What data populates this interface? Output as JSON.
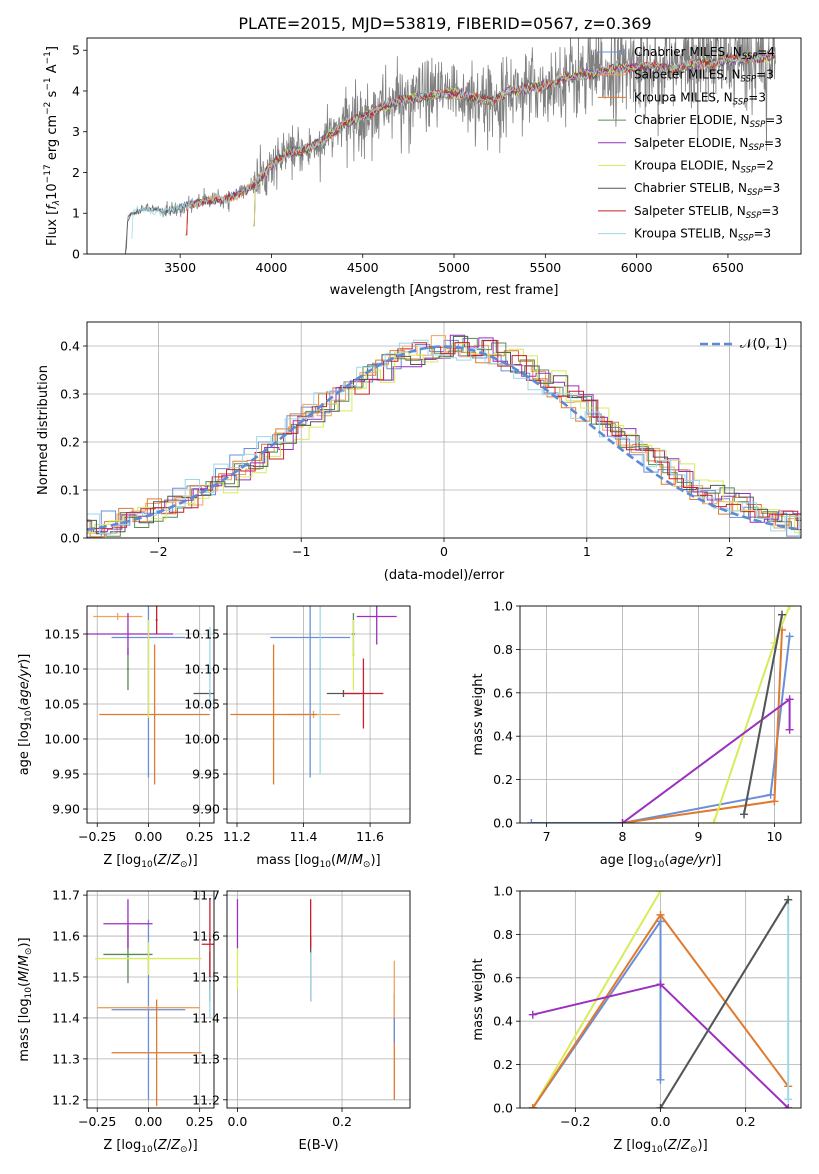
{
  "figure_title": "PLATE=2015, MJD=53819, FIBERID=0567, z=0.369",
  "colors": {
    "Chabrier MILES": "#6a8fd8",
    "Salpeter MILES": "#f0a35e",
    "Kroupa MILES": "#e07a2e",
    "Chabrier ELODIE": "#5a8a5a",
    "Salpeter ELODIE": "#9b30c0",
    "Kroupa ELODIE": "#d8ec5a",
    "Chabrier STELIB": "#555555",
    "Salpeter STELIB": "#c8202a",
    "Kroupa STELIB": "#9ed8e8",
    "data": "#808080",
    "gaussian": "#5b8bd6"
  },
  "chart_data": [
    {
      "id": "spectrum",
      "type": "line",
      "xlabel": "wavelength [Angstrom, rest frame]",
      "ylabel": "Flux [f_λ 10^-17 erg cm^-2 s^-1 A^-1]",
      "xlim": [
        2990,
        6900
      ],
      "ylim": [
        0,
        5.3
      ],
      "xticks": [
        3500,
        4000,
        4500,
        5000,
        5500,
        6000,
        6500
      ],
      "yticks": [
        0,
        1,
        2,
        3,
        4,
        5
      ],
      "legend_position": "top-right",
      "legend": [
        {
          "label": "Chabrier MILES, N",
          "sub": "SSP",
          "suffix": "=4",
          "model": "Chabrier MILES"
        },
        {
          "label": "Salpeter MILES, N",
          "sub": "SSP",
          "suffix": "=3",
          "model": "Salpeter MILES"
        },
        {
          "label": "Kroupa MILES, N",
          "sub": "SSP",
          "suffix": "=3",
          "model": "Kroupa MILES"
        },
        {
          "label": "Chabrier ELODIE, N",
          "sub": "SSP",
          "suffix": "=3",
          "model": "Chabrier ELODIE"
        },
        {
          "label": "Salpeter ELODIE, N",
          "sub": "SSP",
          "suffix": "=3",
          "model": "Salpeter ELODIE"
        },
        {
          "label": "Kroupa ELODIE, N",
          "sub": "SSP",
          "suffix": "=2",
          "model": "Kroupa ELODIE"
        },
        {
          "label": "Chabrier STELIB, N",
          "sub": "SSP",
          "suffix": "=3",
          "model": "Chabrier STELIB"
        },
        {
          "label": "Salpeter STELIB, N",
          "sub": "SSP",
          "suffix": "=3",
          "model": "Salpeter STELIB"
        },
        {
          "label": "Kroupa STELIB, N",
          "sub": "SSP",
          "suffix": "=3",
          "model": "Kroupa STELIB"
        }
      ],
      "continuum": [
        [
          3200,
          0.0
        ],
        [
          3215,
          0.95
        ],
        [
          3300,
          1.1
        ],
        [
          3450,
          1.05
        ],
        [
          3550,
          1.2
        ],
        [
          3650,
          1.35
        ],
        [
          3750,
          1.3
        ],
        [
          3850,
          1.55
        ],
        [
          3950,
          1.9
        ],
        [
          4000,
          2.2
        ],
        [
          4100,
          2.5
        ],
        [
          4200,
          2.55
        ],
        [
          4300,
          2.85
        ],
        [
          4400,
          3.2
        ],
        [
          4500,
          3.35
        ],
        [
          4600,
          3.6
        ],
        [
          4700,
          3.75
        ],
        [
          4800,
          3.85
        ],
        [
          4900,
          3.9
        ],
        [
          5000,
          3.95
        ],
        [
          5100,
          3.85
        ],
        [
          5200,
          3.75
        ],
        [
          5300,
          4.0
        ],
        [
          5400,
          4.05
        ],
        [
          5500,
          4.15
        ],
        [
          5600,
          4.3
        ],
        [
          5700,
          4.4
        ],
        [
          5800,
          4.45
        ],
        [
          5900,
          4.55
        ],
        [
          6000,
          4.6
        ],
        [
          6100,
          4.6
        ],
        [
          6200,
          4.55
        ],
        [
          6300,
          4.65
        ],
        [
          6400,
          4.7
        ],
        [
          6500,
          4.75
        ],
        [
          6600,
          4.8
        ],
        [
          6750,
          4.85
        ]
      ]
    },
    {
      "id": "residuals",
      "type": "line",
      "xlabel": "(data-model)/error",
      "ylabel": "Normed distribution",
      "xlim": [
        -2.5,
        2.5
      ],
      "ylim": [
        0,
        0.45
      ],
      "xticks": [
        -2,
        -1,
        0,
        1,
        2
      ],
      "yticks": [
        0.0,
        0.1,
        0.2,
        0.3,
        0.4
      ],
      "legend_position": "top-right",
      "legend_label": "𝒩(0, 1)",
      "bin_width": 0.1,
      "grid": true
    },
    {
      "id": "age_vs_Z",
      "type": "scatter",
      "xlabel": "Z [log10(Z/Z⊙)]",
      "ylabel": "age [log10(age/yr)]",
      "xlim": [
        -0.3,
        0.32
      ],
      "ylim": [
        9.88,
        10.19
      ],
      "xticks": [
        -0.25,
        0.0,
        0.25
      ],
      "yticks": [
        9.9,
        9.95,
        10.0,
        10.05,
        10.1,
        10.15
      ],
      "grid": true,
      "points": [
        {
          "model": "Chabrier MILES",
          "x": 0.0,
          "y": 10.145,
          "xerr": 0.18,
          "yerr": 0.2
        },
        {
          "model": "Salpeter MILES",
          "x": -0.15,
          "y": 10.175,
          "xerr": 0.12,
          "yerr": 0.005
        },
        {
          "model": "Kroupa MILES",
          "x": 0.03,
          "y": 10.035,
          "xerr": 0.27,
          "yerr": 0.1
        },
        {
          "model": "Chabrier ELODIE",
          "x": -0.1,
          "y": 10.1,
          "xerr": 0.005,
          "yerr": 0.03
        },
        {
          "model": "Salpeter ELODIE",
          "x": -0.1,
          "y": 10.15,
          "xerr": 0.22,
          "yerr": 0.03
        },
        {
          "model": "Kroupa ELODIE",
          "x": 0.0,
          "y": 10.1,
          "xerr": 0.005,
          "yerr": 0.07
        },
        {
          "model": "Chabrier STELIB",
          "x": 0.3,
          "y": 10.065,
          "xerr": 0.08,
          "yerr": 0.005
        },
        {
          "model": "Salpeter STELIB",
          "x": 0.04,
          "y": 10.17,
          "xerr": 0.005,
          "yerr": 0.02
        },
        {
          "model": "Kroupa STELIB",
          "x": 0.3,
          "y": 10.1,
          "xerr": 0.005,
          "yerr": 0.06
        }
      ]
    },
    {
      "id": "age_vs_mass",
      "type": "scatter",
      "xlabel": "mass [log10(M/M⊙)]",
      "ylabel": "",
      "xlim": [
        11.17,
        11.72
      ],
      "ylim": [
        9.88,
        10.19
      ],
      "xticks": [
        11.2,
        11.4,
        11.6
      ],
      "yticks": [
        9.9,
        9.95,
        10.0,
        10.05,
        10.1,
        10.15
      ],
      "grid": true,
      "points": [
        {
          "model": "Chabrier MILES",
          "x": 11.42,
          "y": 10.145,
          "xerr": 0.12,
          "yerr": 0.2
        },
        {
          "model": "Salpeter MILES",
          "x": 11.43,
          "y": 10.035,
          "xerr": 0.08,
          "yerr": 0.005
        },
        {
          "model": "Kroupa MILES",
          "x": 11.31,
          "y": 10.035,
          "xerr": 0.13,
          "yerr": 0.1
        },
        {
          "model": "Chabrier ELODIE",
          "x": 11.55,
          "y": 10.15,
          "xerr": 0.005,
          "yerr": 0.03
        },
        {
          "model": "Salpeter ELODIE",
          "x": 11.62,
          "y": 10.175,
          "xerr": 0.06,
          "yerr": 0.04
        },
        {
          "model": "Kroupa ELODIE",
          "x": 11.55,
          "y": 10.12,
          "xerr": 0.005,
          "yerr": 0.05
        },
        {
          "model": "Chabrier STELIB",
          "x": 11.52,
          "y": 10.065,
          "xerr": 0.05,
          "yerr": 0.005
        },
        {
          "model": "Salpeter STELIB",
          "x": 11.58,
          "y": 10.065,
          "xerr": 0.06,
          "yerr": 0.05
        },
        {
          "model": "Kroupa STELIB",
          "x": 11.45,
          "y": 10.1,
          "xerr": 0.005,
          "yerr": 0.15
        }
      ]
    },
    {
      "id": "weight_vs_age",
      "type": "line",
      "xlabel": "age [log10(age/yr)]",
      "ylabel": "mass weight",
      "xlim": [
        6.65,
        10.35
      ],
      "ylim": [
        0,
        1.0
      ],
      "xticks": [
        7,
        8,
        9,
        10
      ],
      "yticks": [
        0.0,
        0.2,
        0.4,
        0.6,
        0.8,
        1.0
      ],
      "grid": true,
      "series": [
        {
          "model": "Chabrier MILES",
          "x": [
            6.8,
            8.0,
            9.95,
            10.2
          ],
          "y": [
            0.0,
            0.0,
            0.13,
            0.86
          ]
        },
        {
          "model": "Kroupa MILES",
          "x": [
            8.0,
            10.0,
            10.1
          ],
          "y": [
            0.0,
            0.1,
            0.89
          ]
        },
        {
          "model": "Kroupa ELODIE",
          "x": [
            9.2,
            10.0,
            10.2
          ],
          "y": [
            0.0,
            0.83,
            1.0
          ]
        },
        {
          "model": "Salpeter ELODIE",
          "x": [
            8.0,
            10.2,
            10.2
          ],
          "y": [
            0.0,
            0.57,
            0.43
          ]
        },
        {
          "model": "Kroupa STELIB",
          "x": [
            9.6,
            10.1
          ],
          "y": [
            0.04,
            0.96
          ]
        },
        {
          "model": "Chabrier STELIB",
          "x": [
            9.6,
            10.1
          ],
          "y": [
            0.04,
            0.96
          ]
        }
      ]
    },
    {
      "id": "mass_vs_Z",
      "type": "scatter",
      "xlabel": "Z [log10(Z/Z⊙)]",
      "ylabel": "mass [log10(M/M⊙)]",
      "xlim": [
        -0.3,
        0.32
      ],
      "ylim": [
        11.18,
        11.71
      ],
      "xticks": [
        -0.25,
        0.0,
        0.25
      ],
      "yticks": [
        11.2,
        11.3,
        11.4,
        11.5,
        11.6,
        11.7
      ],
      "grid": true,
      "points": [
        {
          "model": "Chabrier MILES",
          "x": 0.0,
          "y": 11.42,
          "xerr": 0.18,
          "yerr": 0.22
        },
        {
          "model": "Salpeter MILES",
          "x": 0.0,
          "y": 11.425,
          "xerr": 0.25,
          "yerr": 0.005
        },
        {
          "model": "Kroupa MILES",
          "x": 0.04,
          "y": 11.315,
          "xerr": 0.22,
          "yerr": 0.13
        },
        {
          "model": "Chabrier ELODIE",
          "x": -0.1,
          "y": 11.555,
          "xerr": 0.12,
          "yerr": 0.07
        },
        {
          "model": "Salpeter ELODIE",
          "x": -0.1,
          "y": 11.63,
          "xerr": 0.12,
          "yerr": 0.06
        },
        {
          "model": "Kroupa ELODIE",
          "x": 0.0,
          "y": 11.545,
          "xerr": 0.26,
          "yerr": 0.04
        },
        {
          "model": "Chabrier STELIB",
          "x": 0.3,
          "y": 11.5,
          "xerr": 0.005,
          "yerr": 0.06
        },
        {
          "model": "Salpeter STELIB",
          "x": 0.3,
          "y": 11.58,
          "xerr": 0.04,
          "yerr": 0.11
        },
        {
          "model": "Kroupa STELIB",
          "x": 0.3,
          "y": 11.45,
          "xerr": 0.005,
          "yerr": 0.05
        }
      ]
    },
    {
      "id": "mass_vs_EBV",
      "type": "scatter",
      "xlabel": "E(B-V)",
      "ylabel": "",
      "xlim": [
        -0.02,
        0.33
      ],
      "ylim": [
        11.18,
        11.71
      ],
      "xticks": [
        0.0,
        0.2
      ],
      "yticks": [
        11.2,
        11.3,
        11.4,
        11.5,
        11.6,
        11.7
      ],
      "grid": true,
      "points": [
        {
          "model": "Salpeter ELODIE",
          "x": 0.0,
          "y": 11.63,
          "xerr": 0.0,
          "yerr": 0.06
        },
        {
          "model": "Kroupa ELODIE",
          "x": 0.0,
          "y": 11.52,
          "xerr": 0.0,
          "yerr": 0.05
        },
        {
          "model": "Chabrier STELIB",
          "x": 0.14,
          "y": 11.52,
          "xerr": 0.0,
          "yerr": 0.08
        },
        {
          "model": "Salpeter STELIB",
          "x": 0.14,
          "y": 11.63,
          "xerr": 0.0,
          "yerr": 0.06
        },
        {
          "model": "Kroupa STELIB",
          "x": 0.14,
          "y": 11.5,
          "xerr": 0.0,
          "yerr": 0.06
        },
        {
          "model": "Kroupa MILES",
          "x": 0.3,
          "y": 11.32,
          "xerr": 0.0,
          "yerr": 0.12
        },
        {
          "model": "Chabrier MILES",
          "x": 0.3,
          "y": 11.4,
          "xerr": 0.0,
          "yerr": 0.06
        },
        {
          "model": "Salpeter MILES",
          "x": 0.3,
          "y": 11.47,
          "xerr": 0.0,
          "yerr": 0.07
        }
      ]
    },
    {
      "id": "weight_vs_Z",
      "type": "line",
      "xlabel": "Z [log10(Z/Z⊙)]",
      "ylabel": "mass weight",
      "xlim": [
        -0.33,
        0.33
      ],
      "ylim": [
        0,
        1.0
      ],
      "xticks": [
        -0.2,
        0.0,
        0.2
      ],
      "yticks": [
        0.0,
        0.2,
        0.4,
        0.6,
        0.8,
        1.0
      ],
      "grid": true,
      "series": [
        {
          "model": "Kroupa ELODIE",
          "x": [
            -0.3,
            0.0
          ],
          "y": [
            0.0,
            1.0
          ]
        },
        {
          "model": "Chabrier MILES",
          "x": [
            -0.3,
            0.0,
            0.0
          ],
          "y": [
            0.0,
            0.86,
            0.13
          ]
        },
        {
          "model": "Kroupa MILES",
          "x": [
            -0.3,
            0.0,
            0.3
          ],
          "y": [
            0.0,
            0.89,
            0.1
          ]
        },
        {
          "model": "Salpeter ELODIE",
          "x": [
            -0.3,
            0.0,
            0.3
          ],
          "y": [
            0.43,
            0.57,
            0.0
          ]
        },
        {
          "model": "Kroupa STELIB",
          "x": [
            0.0,
            0.3,
            0.3
          ],
          "y": [
            0.0,
            0.96,
            0.04
          ]
        },
        {
          "model": "Chabrier STELIB",
          "x": [
            0.0,
            0.3
          ],
          "y": [
            0.0,
            0.96
          ]
        }
      ]
    }
  ]
}
